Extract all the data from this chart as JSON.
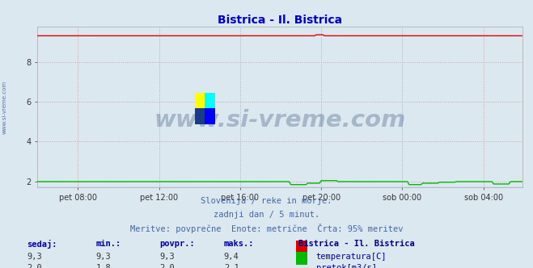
{
  "title": "Bistrica - Il. Bistrica",
  "title_color": "#0000cc",
  "background_color": "#dce8f0",
  "plot_bg_color": "#dce8f0",
  "x_labels": [
    "pet 08:00",
    "pet 12:00",
    "pet 16:00",
    "pet 20:00",
    "sob 00:00",
    "sob 04:00"
  ],
  "y_ticks": [
    2,
    4,
    6,
    8
  ],
  "ylim": [
    1.7,
    9.75
  ],
  "xlim": [
    0,
    287
  ],
  "temp_value": 9.3,
  "temp_min": 9.3,
  "temp_max": 9.4,
  "flow_value": 2.0,
  "flow_min": 1.8,
  "flow_max": 2.1,
  "temp_color": "#dd0000",
  "flow_color": "#00bb00",
  "height_color": "#0000dd",
  "grid_color": "#cc9999",
  "watermark": "www.si-vreme.com",
  "watermark_color": "#1a3a6a",
  "subtitle1": "Slovenija / reke in morje.",
  "subtitle2": "zadnji dan / 5 minut.",
  "subtitle3": "Meritve: povprečne  Enote: metrične  Črta: 95% meritev",
  "subtitle_color": "#4466aa",
  "legend_title": "Bistrica - Il. Bistrica",
  "legend_title_color": "#000088",
  "legend_label1": "temperatura[C]",
  "legend_label2": "pretok[m3/s]",
  "legend_color": "#0000aa",
  "table_headers": [
    "sedaj:",
    "min.:",
    "povpr.:",
    "maks.:"
  ],
  "table_row1": [
    "9,3",
    "9,3",
    "9,3",
    "9,4"
  ],
  "table_row2": [
    "2,0",
    "1,8",
    "2,0",
    "2,1"
  ],
  "sidebar_text": "www.si-vreme.com",
  "sidebar_color": "#4466aa",
  "n_points": 288
}
